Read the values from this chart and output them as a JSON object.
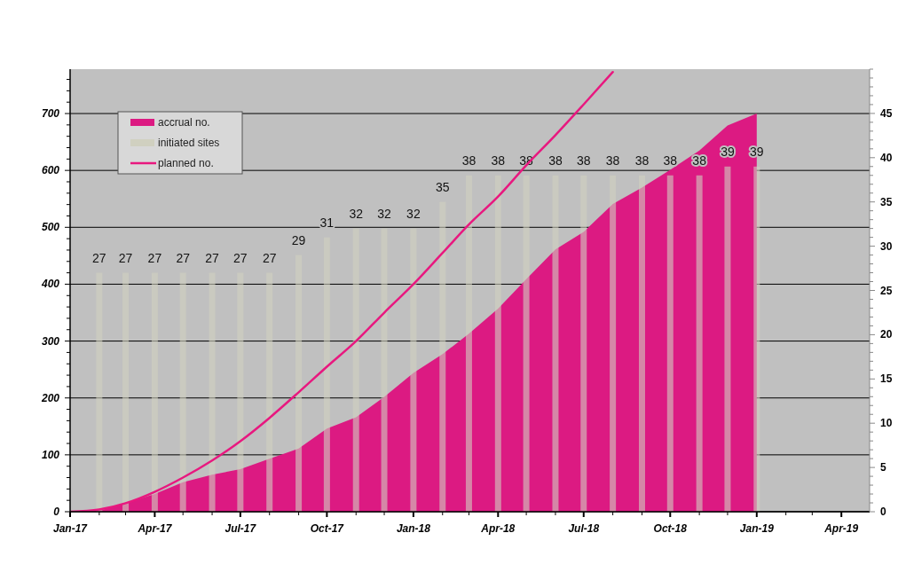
{
  "chart_data": {
    "type": "area",
    "xlim": [
      "2017-01",
      "2019-05"
    ],
    "xticks": [
      {
        "value": "2017-01",
        "label": "Jan-17"
      },
      {
        "value": "2017-02",
        "label": null
      },
      {
        "value": "2017-03",
        "label": null
      },
      {
        "value": "2017-04",
        "label": "Apr-17"
      },
      {
        "value": "2017-05",
        "label": null
      },
      {
        "value": "2017-06",
        "label": null
      },
      {
        "value": "2017-07",
        "label": "Jul-17"
      },
      {
        "value": "2017-08",
        "label": null
      },
      {
        "value": "2017-09",
        "label": null
      },
      {
        "value": "2017-10",
        "label": "Oct-17"
      },
      {
        "value": "2017-11",
        "label": null
      },
      {
        "value": "2017-12",
        "label": null
      },
      {
        "value": "2018-01",
        "label": "Jan-18"
      },
      {
        "value": "2018-02",
        "label": null
      },
      {
        "value": "2018-03",
        "label": null
      },
      {
        "value": "2018-04",
        "label": "Apr-18"
      },
      {
        "value": "2018-05",
        "label": null
      },
      {
        "value": "2018-06",
        "label": null
      },
      {
        "value": "2018-07",
        "label": "Jul-18"
      },
      {
        "value": "2018-08",
        "label": null
      },
      {
        "value": "2018-09",
        "label": null
      },
      {
        "value": "2018-10",
        "label": "Oct-18"
      },
      {
        "value": "2018-11",
        "label": null
      },
      {
        "value": "2018-12",
        "label": null
      },
      {
        "value": "2019-01",
        "label": "Jan-19"
      },
      {
        "value": "2019-02",
        "label": null
      },
      {
        "value": "2019-03",
        "label": null
      },
      {
        "value": "2019-04",
        "label": "Apr-19"
      }
    ],
    "ylim": [
      0,
      778
    ],
    "yticks": [
      0,
      {
        "value": 20,
        "label": null
      },
      {
        "value": 40,
        "label": null
      },
      {
        "value": 60,
        "label": null
      },
      {
        "value": 80,
        "label": null
      },
      100,
      {
        "value": 120,
        "label": null
      },
      {
        "value": 140,
        "label": null
      },
      {
        "value": 160,
        "label": null
      },
      {
        "value": 180,
        "label": null
      },
      200,
      {
        "value": 220,
        "label": null
      },
      {
        "value": 240,
        "label": null
      },
      {
        "value": 260,
        "label": null
      },
      {
        "value": 280,
        "label": null
      },
      300,
      {
        "value": 320,
        "label": null
      },
      {
        "value": 340,
        "label": null
      },
      {
        "value": 360,
        "label": null
      },
      {
        "value": 380,
        "label": null
      },
      400,
      {
        "value": 420,
        "label": null
      },
      {
        "value": 440,
        "label": null
      },
      {
        "value": 460,
        "label": null
      },
      {
        "value": 480,
        "label": null
      },
      500,
      {
        "value": 520,
        "label": null
      },
      {
        "value": 540,
        "label": null
      },
      {
        "value": 560,
        "label": null
      },
      {
        "value": 580,
        "label": null
      },
      600,
      {
        "value": 620,
        "label": null
      },
      {
        "value": 640,
        "label": null
      },
      {
        "value": 660,
        "label": null
      },
      {
        "value": 680,
        "label": null
      },
      700,
      {
        "value": 720,
        "label": null
      },
      {
        "value": 740,
        "label": null
      },
      {
        "value": 760,
        "label": null
      }
    ],
    "y2lim": [
      0,
      50
    ],
    "y2ticks": [
      0,
      {
        "value": 1,
        "label": null
      },
      {
        "value": 2,
        "label": null
      },
      {
        "value": 3,
        "label": null
      },
      {
        "value": 4,
        "label": null
      },
      5,
      {
        "value": 6,
        "label": null
      },
      {
        "value": 7,
        "label": null
      },
      {
        "value": 8,
        "label": null
      },
      {
        "value": 9,
        "label": null
      },
      10,
      {
        "value": 11,
        "label": null
      },
      {
        "value": 12,
        "label": null
      },
      {
        "value": 13,
        "label": null
      },
      {
        "value": 14,
        "label": null
      },
      15,
      {
        "value": 16,
        "label": null
      },
      {
        "value": 17,
        "label": null
      },
      {
        "value": 18,
        "label": null
      },
      {
        "value": 19,
        "label": null
      },
      20,
      {
        "value": 21,
        "label": null
      },
      {
        "value": 22,
        "label": null
      },
      {
        "value": 23,
        "label": null
      },
      {
        "value": 24,
        "label": null
      },
      25,
      {
        "value": 26,
        "label": null
      },
      {
        "value": 27,
        "label": null
      },
      {
        "value": 28,
        "label": null
      },
      {
        "value": 29,
        "label": null
      },
      30,
      {
        "value": 31,
        "label": null
      },
      {
        "value": 32,
        "label": null
      },
      {
        "value": 33,
        "label": null
      },
      {
        "value": 34,
        "label": null
      },
      35,
      {
        "value": 36,
        "label": null
      },
      {
        "value": 37,
        "label": null
      },
      {
        "value": 38,
        "label": null
      },
      {
        "value": 39,
        "label": null
      },
      40,
      {
        "value": 41,
        "label": null
      },
      {
        "value": 42,
        "label": null
      },
      {
        "value": 43,
        "label": null
      },
      {
        "value": 44,
        "label": null
      },
      45,
      {
        "value": 46,
        "label": null
      },
      {
        "value": 47,
        "label": null
      },
      {
        "value": 48,
        "label": null
      },
      {
        "value": 49,
        "label": null
      },
      {
        "value": 50,
        "label": null
      }
    ],
    "grid": "y",
    "legend": "top left",
    "series": [
      {
        "name": "accrual no.",
        "color": "#dc1a82",
        "axis": "y",
        "x": [
          "2017-01",
          "2017-02",
          "2017-03",
          "2017-04",
          "2017-05",
          "2017-06",
          "2017-07",
          "2017-08",
          "2017-09",
          "2017-10",
          "2017-11",
          "2017-12",
          "2018-01",
          "2018-02",
          "2018-03",
          "2018-04",
          "2018-05",
          "2018-06",
          "2018-07",
          "2018-08",
          "2018-09",
          "2018-10",
          "2018-11",
          "2018-12",
          "2019-01"
        ],
        "values": [
          0,
          2,
          15,
          31,
          52,
          65,
          75,
          93,
          111,
          146,
          166,
          202,
          244,
          277,
          313,
          357,
          409,
          461,
          492,
          541,
          570,
          601,
          635,
          679,
          700
        ]
      },
      {
        "name": "initiated sites",
        "type": "bar",
        "color": "#d0d0c0",
        "axis": "y2",
        "x": [
          "2017-02",
          "2017-03",
          "2017-04",
          "2017-05",
          "2017-06",
          "2017-07",
          "2017-08",
          "2017-09",
          "2017-10",
          "2017-11",
          "2017-12",
          "2018-01",
          "2018-02",
          "2018-03",
          "2018-04",
          "2018-05",
          "2018-06",
          "2018-07",
          "2018-08",
          "2018-09",
          "2018-10",
          "2018-11",
          "2018-12",
          "2019-01"
        ],
        "values": [
          27,
          27,
          27,
          27,
          27,
          27,
          27,
          29,
          31,
          32,
          32,
          32,
          35,
          38,
          38,
          38,
          38,
          38,
          38,
          38,
          38,
          38,
          39,
          39
        ],
        "value_labels": [
          "27",
          "27",
          "27",
          "27",
          "27",
          "27",
          "27",
          "29",
          "31",
          "32",
          "32",
          "32",
          "35",
          "38",
          "38",
          "38",
          "38",
          "38",
          "38",
          "38",
          "38",
          "38",
          "39",
          "39"
        ]
      },
      {
        "name": "planned no.",
        "type": "line",
        "color": "#e8187f",
        "axis": "y",
        "x": [
          "2017-01",
          "2017-02",
          "2017-03",
          "2017-04",
          "2017-05",
          "2017-06",
          "2017-07",
          "2017-08",
          "2017-09",
          "2017-10",
          "2017-11",
          "2017-12",
          "2018-01",
          "2018-02",
          "2018-03",
          "2018-04",
          "2018-05",
          "2018-06",
          "2018-07",
          "2018-08"
        ],
        "values": [
          0,
          4,
          15,
          35,
          60,
          90,
          124,
          165,
          210,
          255,
          300,
          350,
          400,
          455,
          505,
          554,
          609,
          662,
          716,
          773
        ]
      }
    ]
  }
}
